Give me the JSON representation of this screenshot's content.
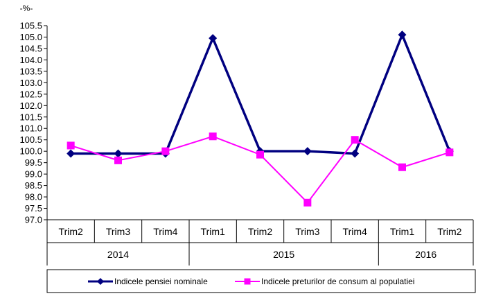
{
  "chart_data": {
    "type": "line",
    "unit_label": "-%-",
    "categories": [
      "Trim2",
      "Trim3",
      "Trim4",
      "Trim1",
      "Trim2",
      "Trim3",
      "Trim4",
      "Trim1",
      "Trim2"
    ],
    "years": [
      {
        "label": "2014",
        "span": 3
      },
      {
        "label": "2015",
        "span": 4
      },
      {
        "label": "2016",
        "span": 2
      }
    ],
    "ylim": [
      97.0,
      105.5
    ],
    "yticks": [
      "97.0",
      "97.5",
      "98.0",
      "98.5",
      "99.0",
      "99.5",
      "100.0",
      "100.5",
      "101.0",
      "101.5",
      "102.0",
      "102.5",
      "103.0",
      "103.5",
      "104.0",
      "104.5",
      "105.0",
      "105.5"
    ],
    "series": [
      {
        "name": "Indicele pensiei nominale",
        "color": "#000080",
        "marker": "diamond",
        "values": [
          99.9,
          99.9,
          99.9,
          104.95,
          100.0,
          100.0,
          99.9,
          105.1,
          100.0
        ]
      },
      {
        "name": "Indicele preturilor de consum al populatiei",
        "color": "#ff00ff",
        "marker": "square",
        "values": [
          100.25,
          99.6,
          100.0,
          100.65,
          99.85,
          97.75,
          100.5,
          99.3,
          99.95
        ]
      }
    ],
    "grid": false,
    "legend_position": "bottom"
  }
}
